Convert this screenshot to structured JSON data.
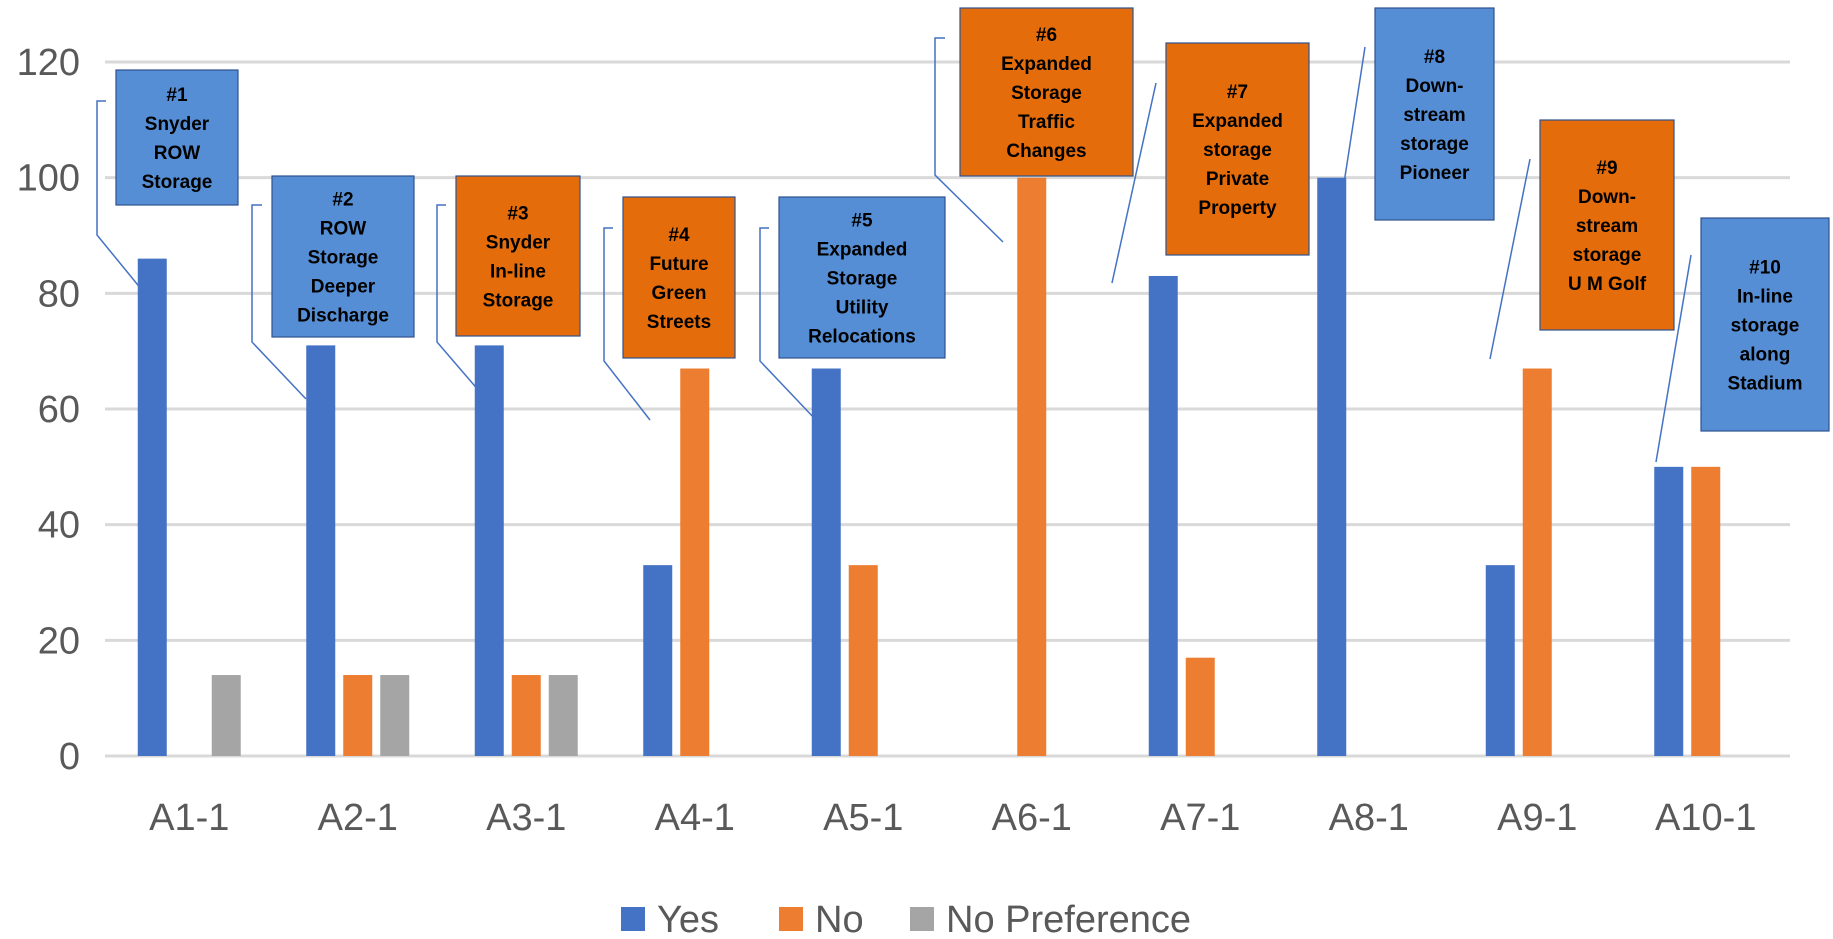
{
  "chart_data": {
    "type": "bar",
    "title": "",
    "xlabel": "",
    "ylabel": "",
    "ylim": [
      0,
      120
    ],
    "yticks": [
      0,
      20,
      40,
      60,
      80,
      100,
      120
    ],
    "grid": true,
    "legend_position": "bottom",
    "categories": [
      "A1-1",
      "A2-1",
      "A3-1",
      "A4-1",
      "A5-1",
      "A6-1",
      "A7-1",
      "A8-1",
      "A9-1",
      "A10-1"
    ],
    "series": [
      {
        "name": "Yes",
        "color": "#4472C4",
        "values": [
          86,
          71,
          71,
          33,
          67,
          0,
          83,
          100,
          33,
          50
        ]
      },
      {
        "name": "No",
        "color": "#ED7D31",
        "values": [
          0,
          14,
          14,
          67,
          33,
          100,
          17,
          0,
          67,
          50
        ]
      },
      {
        "name": "No Preference",
        "color": "#A5A5A5",
        "values": [
          14,
          14,
          14,
          0,
          0,
          0,
          0,
          0,
          0,
          0
        ]
      }
    ],
    "annotations": [
      {
        "lines": [
          "#1",
          "Snyder",
          "ROW",
          "Storage"
        ],
        "color": "#558ED5",
        "category": "A1-1"
      },
      {
        "lines": [
          "#2",
          "ROW",
          "Storage",
          "Deeper",
          "Discharge"
        ],
        "color": "#558ED5",
        "category": "A2-1"
      },
      {
        "lines": [
          "#3",
          "Snyder",
          "In-line",
          "Storage"
        ],
        "color": "#E46C0A",
        "category": "A3-1"
      },
      {
        "lines": [
          "#4",
          "Future",
          "Green",
          "Streets"
        ],
        "color": "#E46C0A",
        "category": "A4-1"
      },
      {
        "lines": [
          "#5",
          "Expanded",
          "Storage",
          "Utility",
          "Relocations"
        ],
        "color": "#558ED5",
        "category": "A5-1"
      },
      {
        "lines": [
          "#6",
          "Expanded",
          "Storage",
          "Traffic",
          "Changes"
        ],
        "color": "#E46C0A",
        "category": "A6-1"
      },
      {
        "lines": [
          "#7",
          "Expanded",
          "storage",
          "Private",
          "Property"
        ],
        "color": "#E46C0A",
        "category": "A7-1"
      },
      {
        "lines": [
          "#8",
          "Down-",
          "stream",
          "storage",
          "Pioneer"
        ],
        "color": "#558ED5",
        "category": "A8-1"
      },
      {
        "lines": [
          "#9",
          "Down-",
          "stream",
          "storage",
          "U M Golf"
        ],
        "color": "#E46C0A",
        "category": "A9-1"
      },
      {
        "lines": [
          "#10",
          "In-line",
          "storage",
          "along",
          "Stadium"
        ],
        "color": "#558ED5",
        "category": "A10-1"
      }
    ]
  }
}
